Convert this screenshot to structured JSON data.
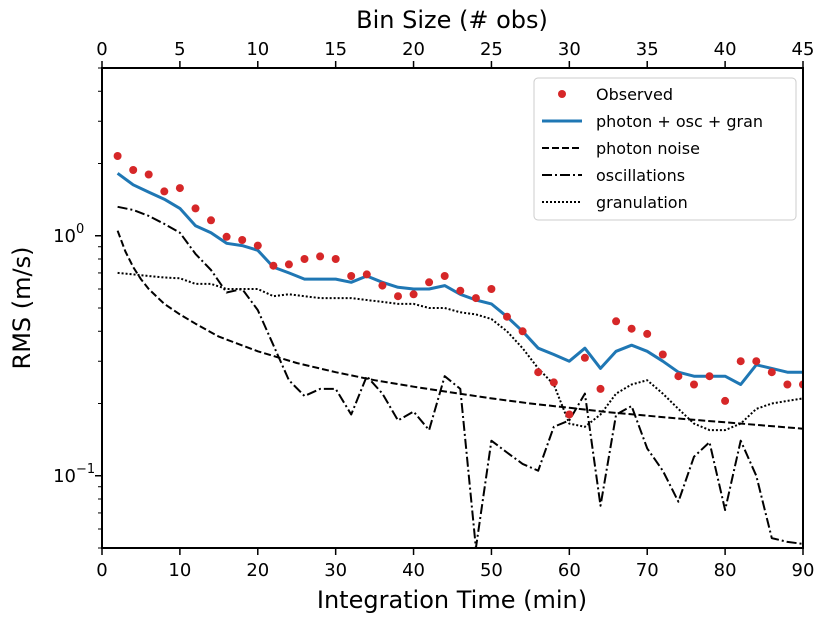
{
  "chart_data": {
    "type": "line",
    "xlabel": "Integration Time (min)",
    "ylabel": "RMS (m/s)",
    "top_xlabel": "Bin Size (# obs)",
    "xlim": [
      0,
      90
    ],
    "ylim": [
      0.05,
      5
    ],
    "yscale": "log",
    "top_xlim": [
      0,
      45
    ],
    "x_ticks": [
      "0",
      "10",
      "20",
      "30",
      "40",
      "50",
      "60",
      "70",
      "80",
      "90"
    ],
    "top_x_ticks": [
      "0",
      "5",
      "10",
      "15",
      "20",
      "25",
      "30",
      "35",
      "40",
      "45"
    ],
    "y_major_ticks": [
      {
        "value": 0.1,
        "label": "10",
        "exp": "−1"
      },
      {
        "value": 1,
        "label": "10",
        "exp": "0"
      }
    ],
    "legend": {
      "placement": "top-right",
      "entries": [
        "Observed",
        "photon + osc + gran",
        "photon noise",
        "oscillations",
        "granulation"
      ]
    },
    "observed": {
      "name": "Observed",
      "color": "#d62728",
      "x": [
        2,
        4,
        6,
        8,
        10,
        12,
        14,
        16,
        18,
        20,
        22,
        24,
        26,
        28,
        30,
        32,
        34,
        36,
        38,
        40,
        42,
        44,
        46,
        48,
        50,
        52,
        54,
        56,
        58,
        60,
        62,
        64,
        66,
        68,
        70,
        72,
        74,
        76,
        78,
        80,
        82,
        84,
        86,
        88,
        90
      ],
      "y": [
        2.15,
        1.88,
        1.8,
        1.53,
        1.58,
        1.3,
        1.16,
        0.99,
        0.96,
        0.91,
        0.75,
        0.76,
        0.8,
        0.82,
        0.8,
        0.68,
        0.69,
        0.62,
        0.56,
        0.57,
        0.64,
        0.68,
        0.59,
        0.55,
        0.6,
        0.46,
        0.4,
        0.27,
        0.245,
        0.18,
        0.31,
        0.23,
        0.44,
        0.41,
        0.39,
        0.32,
        0.26,
        0.24,
        0.26,
        0.205,
        0.3,
        0.3,
        0.27,
        0.24,
        0.24
      ]
    },
    "series": [
      {
        "name": "photon + osc + gran",
        "style": "solid",
        "color": "#1f77b4",
        "x": [
          2,
          4,
          6,
          8,
          10,
          12,
          14,
          16,
          18,
          20,
          22,
          24,
          26,
          28,
          30,
          32,
          34,
          36,
          38,
          40,
          42,
          44,
          46,
          48,
          50,
          52,
          54,
          56,
          58,
          60,
          62,
          64,
          66,
          68,
          70,
          72,
          74,
          76,
          78,
          80,
          82,
          84,
          86,
          88,
          90
        ],
        "y": [
          1.82,
          1.63,
          1.52,
          1.42,
          1.3,
          1.1,
          1.03,
          0.93,
          0.91,
          0.87,
          0.74,
          0.7,
          0.66,
          0.66,
          0.66,
          0.64,
          0.68,
          0.64,
          0.61,
          0.6,
          0.6,
          0.62,
          0.57,
          0.54,
          0.52,
          0.46,
          0.4,
          0.34,
          0.32,
          0.3,
          0.34,
          0.28,
          0.33,
          0.35,
          0.33,
          0.3,
          0.27,
          0.26,
          0.26,
          0.26,
          0.24,
          0.29,
          0.28,
          0.27,
          0.27
        ]
      },
      {
        "name": "photon noise",
        "style": "dashed",
        "color": "#000000",
        "x": [
          2,
          3,
          4,
          5,
          6,
          8,
          10,
          12,
          15,
          20,
          25,
          30,
          35,
          40,
          45,
          50,
          55,
          60,
          65,
          70,
          75,
          80,
          85,
          90
        ],
        "y": [
          1.05,
          0.86,
          0.74,
          0.66,
          0.6,
          0.52,
          0.47,
          0.43,
          0.38,
          0.33,
          0.295,
          0.27,
          0.25,
          0.235,
          0.222,
          0.21,
          0.2,
          0.192,
          0.184,
          0.178,
          0.172,
          0.167,
          0.162,
          0.157
        ]
      },
      {
        "name": "oscillations",
        "style": "dashdot",
        "color": "#000000",
        "x": [
          2,
          4,
          6,
          8,
          10,
          12,
          14,
          16,
          18,
          20,
          22,
          24,
          26,
          28,
          30,
          32,
          34,
          36,
          38,
          40,
          42,
          44,
          46,
          48,
          50,
          52,
          54,
          56,
          58,
          60,
          62,
          64,
          66,
          68,
          70,
          72,
          74,
          76,
          78,
          80,
          82,
          84,
          86,
          88,
          90
        ],
        "y": [
          1.32,
          1.28,
          1.21,
          1.12,
          1.03,
          0.84,
          0.72,
          0.58,
          0.6,
          0.49,
          0.35,
          0.25,
          0.215,
          0.23,
          0.23,
          0.18,
          0.26,
          0.22,
          0.17,
          0.185,
          0.155,
          0.26,
          0.23,
          0.05,
          0.14,
          0.125,
          0.112,
          0.105,
          0.16,
          0.17,
          0.22,
          0.075,
          0.18,
          0.195,
          0.13,
          0.105,
          0.078,
          0.12,
          0.138,
          0.072,
          0.14,
          0.1,
          0.055,
          0.053,
          0.052
        ]
      },
      {
        "name": "granulation",
        "style": "dotted",
        "color": "#000000",
        "x": [
          2,
          4,
          6,
          8,
          10,
          12,
          14,
          16,
          18,
          20,
          22,
          24,
          26,
          28,
          30,
          32,
          34,
          36,
          38,
          40,
          42,
          44,
          46,
          48,
          50,
          52,
          54,
          56,
          58,
          60,
          62,
          64,
          66,
          68,
          70,
          72,
          74,
          76,
          78,
          80,
          82,
          84,
          86,
          88,
          90
        ],
        "y": [
          0.7,
          0.69,
          0.68,
          0.67,
          0.665,
          0.63,
          0.63,
          0.6,
          0.6,
          0.6,
          0.56,
          0.57,
          0.56,
          0.55,
          0.55,
          0.55,
          0.54,
          0.53,
          0.52,
          0.52,
          0.5,
          0.5,
          0.48,
          0.47,
          0.45,
          0.4,
          0.34,
          0.28,
          0.24,
          0.165,
          0.16,
          0.18,
          0.22,
          0.24,
          0.25,
          0.22,
          0.19,
          0.165,
          0.155,
          0.155,
          0.165,
          0.19,
          0.2,
          0.205,
          0.21
        ]
      }
    ]
  }
}
